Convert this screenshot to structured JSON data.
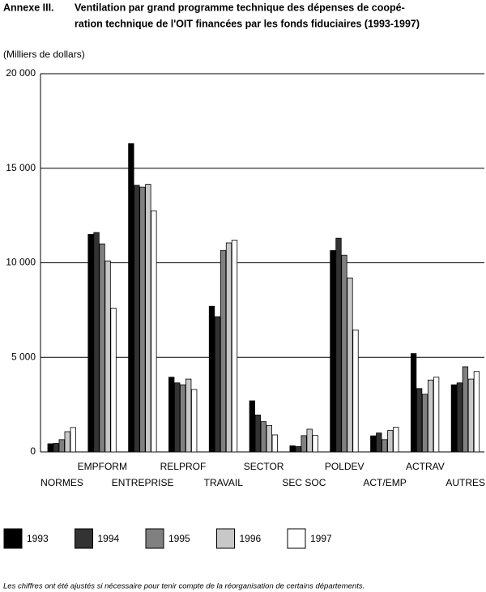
{
  "chart_data": {
    "type": "bar",
    "label": "Annexe III.",
    "title": [
      "Ventilation par grand programme technique des dépenses de coopé-",
      "ration technique de l'OIT financées par les fonds fiduciaires (1993-1997)"
    ],
    "y_axis_label": "(Milliers de dollars)",
    "categories": [
      "NORMES",
      "EMPFORM",
      "ENTREPRISE",
      "RELPROF",
      "TRAVAIL",
      "SECTOR",
      "SEC SOC",
      "POLDEV",
      "ACT/EMP",
      "ACTRAV",
      "AUTRES"
    ],
    "series": [
      {
        "name": "1993",
        "color": "#000000",
        "values": [
          430,
          11500,
          16300,
          3950,
          7700,
          2700,
          320,
          10650,
          850,
          5200,
          3550
        ]
      },
      {
        "name": "1994",
        "color": "#333333",
        "values": [
          450,
          11600,
          14100,
          3650,
          7150,
          1950,
          280,
          11300,
          1000,
          3350,
          3650
        ]
      },
      {
        "name": "1995",
        "color": "#808080",
        "values": [
          650,
          11000,
          14000,
          3550,
          10650,
          1600,
          860,
          10400,
          650,
          3050,
          4500
        ]
      },
      {
        "name": "1996",
        "color": "#c8c8c8",
        "values": [
          1070,
          10100,
          14150,
          3850,
          11050,
          1400,
          1200,
          9200,
          1130,
          3800,
          3850
        ]
      },
      {
        "name": "1997",
        "color": "#ffffff",
        "values": [
          1290,
          7600,
          12750,
          3300,
          11200,
          900,
          870,
          6450,
          1300,
          3950,
          4250
        ]
      }
    ],
    "ylim": [
      0,
      20000
    ],
    "yticks": [
      0,
      {
        "value": 5000,
        "label": "5 000"
      },
      {
        "value": 10000,
        "label": "10 000"
      },
      {
        "value": 15000,
        "label": "15 000"
      },
      {
        "value": 20000,
        "label": "20 000"
      }
    ],
    "grid": true,
    "note": "Les chiffres ont été ajustés si nécessaire pour tenir compte de la réorganisation de certains départements."
  }
}
